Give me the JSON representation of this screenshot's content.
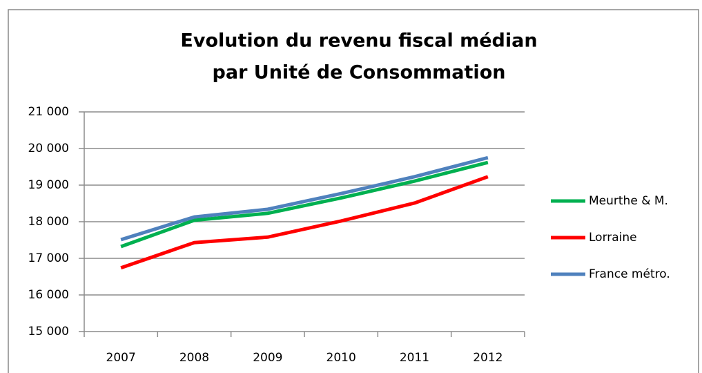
{
  "chart_data": {
    "type": "line",
    "title": [
      "Evolution du revenu fiscal médian",
      "par Unité de Consommation"
    ],
    "categories": [
      "2007",
      "2008",
      "2009",
      "2010",
      "2011",
      "2012"
    ],
    "series": [
      {
        "name": "Meurthe & M.",
        "color": "#00b050",
        "values": [
          17320,
          18040,
          18230,
          18650,
          19110,
          19620
        ]
      },
      {
        "name": "Lorraine",
        "color": "#ff0000",
        "values": [
          16740,
          17430,
          17580,
          18020,
          18510,
          19230
        ]
      },
      {
        "name": "France métro.",
        "color": "#4f81bd",
        "values": [
          17510,
          18130,
          18340,
          18770,
          19230,
          19750
        ]
      }
    ],
    "ylim": [
      15000,
      21000
    ],
    "yticks": [
      {
        "value": 15000,
        "label": "15 000"
      },
      {
        "value": 16000,
        "label": "16 000"
      },
      {
        "value": 17000,
        "label": "17 000"
      },
      {
        "value": 18000,
        "label": "18 000"
      },
      {
        "value": 19000,
        "label": "19 000"
      },
      {
        "value": 20000,
        "label": "20 000"
      },
      {
        "value": 21000,
        "label": "21 000"
      }
    ],
    "grid": true,
    "legend": "right"
  }
}
